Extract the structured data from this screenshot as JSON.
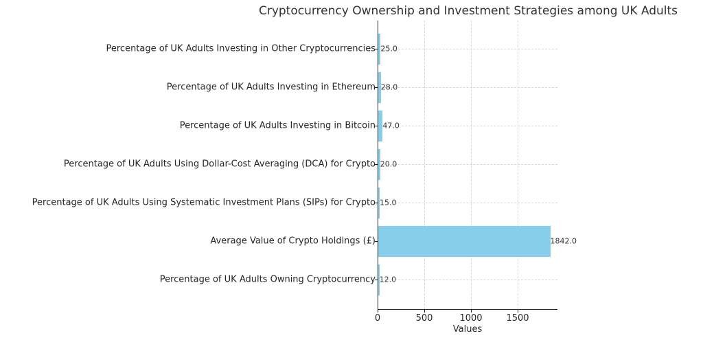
{
  "chart_data": {
    "type": "bar",
    "orientation": "horizontal",
    "title": "Cryptocurrency Ownership and Investment Strategies among UK Adults",
    "xlabel": "Values",
    "ylabel": "",
    "xlim": [
      0,
      1930
    ],
    "xticks": [
      "0",
      "500",
      "1000",
      "1500"
    ],
    "grid": true,
    "bar_color": "#87ceeb",
    "categories": [
      "Percentage of UK Adults Owning Cryptocurrency",
      "Average Value of Crypto Holdings (£)",
      "Percentage of UK Adults Using Systematic Investment Plans (SIPs) for Crypto",
      "Percentage of UK Adults Using Dollar-Cost Averaging (DCA) for Crypto",
      "Percentage of UK Adults Investing in Bitcoin",
      "Percentage of UK Adults Investing in Ethereum",
      "Percentage of UK Adults Investing in Other Cryptocurrencies"
    ],
    "values": [
      12.0,
      1842.0,
      15.0,
      20.0,
      47.0,
      28.0,
      25.0
    ],
    "value_labels": [
      "12.0",
      "1842.0",
      "15.0",
      "20.0",
      "47.0",
      "28.0",
      "25.0"
    ]
  }
}
